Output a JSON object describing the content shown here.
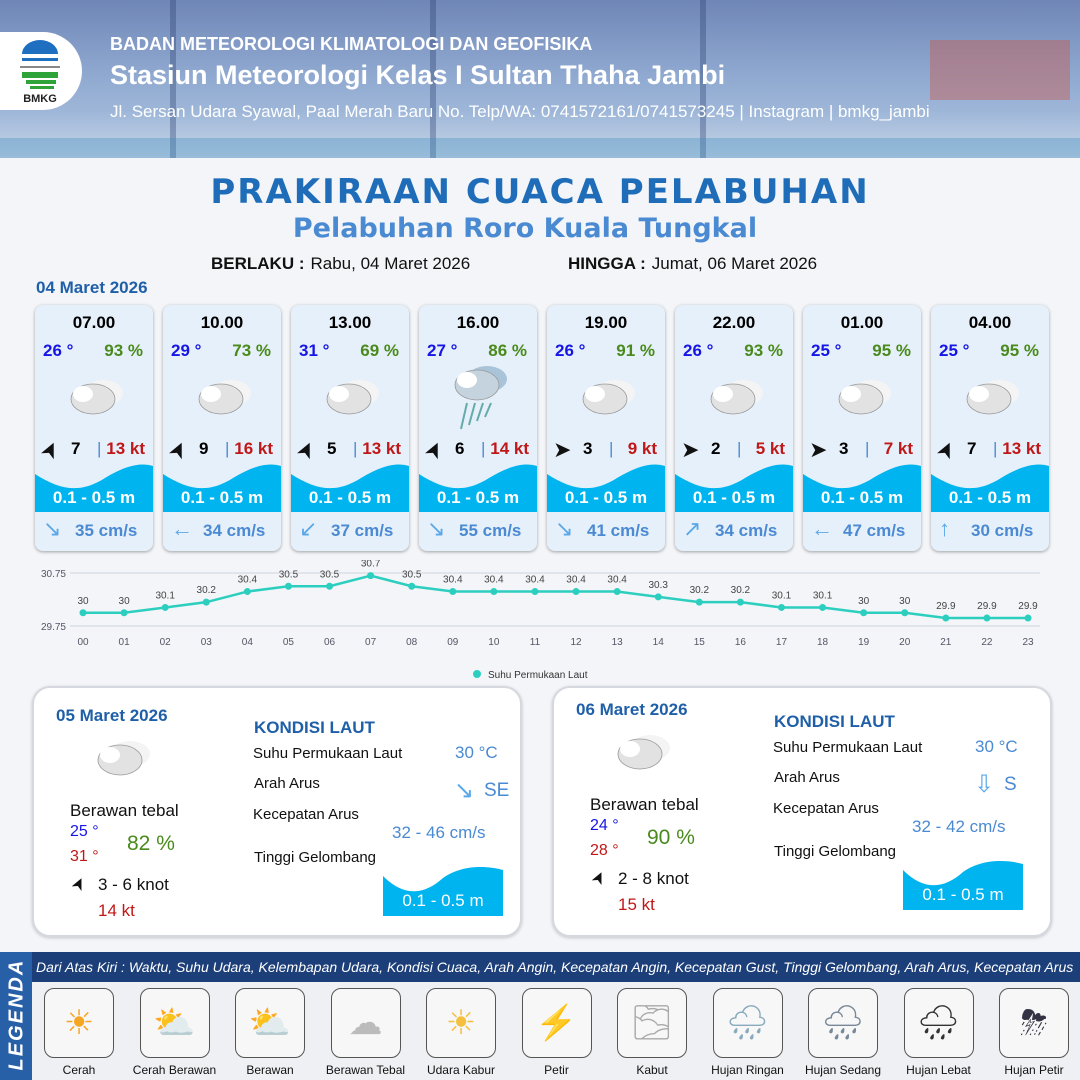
{
  "header": {
    "agency": "BADAN METEOROLOGI KLIMATOLOGI DAN GEOFISIKA",
    "station": "Stasiun Meteorologi Kelas I Sultan Thaha Jambi",
    "address": "Jl. Sersan Udara Syawal, Paal Merah Baru No. Telp/WA: 0741572161/0741573245 | Instagram | bmkg_jambi",
    "logo_text": "BMKG"
  },
  "title": "PRAKIRAAN CUACA PELABUHAN",
  "subtitle": "Pelabuhan Roro Kuala Tungkal",
  "validity": {
    "from_label": "BERLAKU :",
    "from": "Rabu, 04 Maret 2026",
    "to_label": "HINGGA :",
    "to": "Jumat, 06 Maret 2026"
  },
  "day1": {
    "date": "04 Maret 2026",
    "cards": [
      {
        "time": "07.00",
        "temp": "26 °",
        "hum": "93 %",
        "weather": "berawan-tebal",
        "wind_arrow": "north-northeast",
        "wind": "7",
        "gust": "13 kt",
        "wave": "0.1 - 0.5 m",
        "current_arrow": "↘",
        "current_dir": "southeast",
        "current": "35 cm/s"
      },
      {
        "time": "10.00",
        "temp": "29 °",
        "hum": "73 %",
        "weather": "berawan-tebal",
        "wind_arrow": "north-northeast",
        "wind": "9",
        "gust": "16 kt",
        "wave": "0.1 - 0.5 m",
        "current_arrow": "←",
        "current_dir": "west",
        "current": "34 cm/s"
      },
      {
        "time": "13.00",
        "temp": "31 °",
        "hum": "69 %",
        "weather": "berawan-tebal",
        "wind_arrow": "north-northeast",
        "wind": "5",
        "gust": "13 kt",
        "wave": "0.1 - 0.5 m",
        "current_arrow": "↙",
        "current_dir": "southwest",
        "current": "37 cm/s"
      },
      {
        "time": "16.00",
        "temp": "27 °",
        "hum": "86 %",
        "weather": "hujan-ringan",
        "wind_arrow": "north-northeast",
        "wind": "6",
        "gust": "14 kt",
        "wave": "0.1 - 0.5 m",
        "current_arrow": "↘",
        "current_dir": "southeast",
        "current": "55 cm/s"
      },
      {
        "time": "19.00",
        "temp": "26 °",
        "hum": "91 %",
        "weather": "berawan-tebal",
        "wind_arrow": "east",
        "wind": "3",
        "gust": "9 kt",
        "wave": "0.1 - 0.5 m",
        "current_arrow": "↘",
        "current_dir": "southeast",
        "current": "41 cm/s"
      },
      {
        "time": "22.00",
        "temp": "26 °",
        "hum": "93 %",
        "weather": "berawan-tebal",
        "wind_arrow": "east",
        "wind": "2",
        "gust": "5 kt",
        "wave": "0.1 - 0.5 m",
        "current_arrow": "↗",
        "current_dir": "northeast",
        "current": "34 cm/s"
      },
      {
        "time": "01.00",
        "temp": "25 °",
        "hum": "95 %",
        "weather": "berawan-tebal",
        "wind_arrow": "east",
        "wind": "3",
        "gust": "7 kt",
        "wave": "0.1 - 0.5 m",
        "current_arrow": "←",
        "current_dir": "west",
        "current": "47 cm/s"
      },
      {
        "time": "04.00",
        "temp": "25 °",
        "hum": "95 %",
        "weather": "berawan-tebal",
        "wind_arrow": "north-northeast",
        "wind": "7",
        "gust": "13 kt",
        "wave": "0.1 - 0.5 m",
        "current_arrow": "↑",
        "current_dir": "north",
        "current": "30 cm/s"
      }
    ]
  },
  "chart_data": {
    "type": "line",
    "x": [
      "00",
      "01",
      "02",
      "03",
      "04",
      "05",
      "06",
      "07",
      "08",
      "09",
      "10",
      "11",
      "12",
      "13",
      "14",
      "15",
      "16",
      "17",
      "18",
      "19",
      "20",
      "21",
      "22",
      "23"
    ],
    "series": [
      {
        "name": "Suhu Permukaan Laut",
        "values": [
          30.0,
          30.0,
          30.1,
          30.2,
          30.4,
          30.5,
          30.5,
          30.7,
          30.5,
          30.4,
          30.4,
          30.4,
          30.4,
          30.4,
          30.3,
          30.2,
          30.2,
          30.1,
          30.1,
          30.0,
          30.0,
          29.9,
          29.9,
          29.9
        ]
      }
    ],
    "yticks": [
      "30.75",
      "29.75"
    ],
    "ylim": [
      29.75,
      30.75
    ],
    "color": "#2ccfbf",
    "legend": "bottom",
    "grid": true
  },
  "days": [
    {
      "date": "05 Maret 2026",
      "weather": "Berawan tebal",
      "tmin": "25 °",
      "tmax": "31 °",
      "hum": "82 %",
      "wind": "3  - 6 knot",
      "gust": "14 kt",
      "kondisi": "KONDISI LAUT",
      "sst_label": "Suhu Permukaan Laut",
      "sst": "30 °C",
      "dir_label": "Arah Arus",
      "dir": "SE",
      "dir_arrow": "↘",
      "speed_label": "Kecepatan Arus",
      "speed": "32  - 46 cm/s",
      "wave_label": "Tinggi Gelombang",
      "wave": "0.1 - 0.5 m"
    },
    {
      "date": "06 Maret 2026",
      "weather": "Berawan tebal",
      "tmin": "24 °",
      "tmax": "28 °",
      "hum": "90 %",
      "wind": "2  - 8 knot",
      "gust": "15 kt",
      "kondisi": "KONDISI LAUT",
      "sst_label": "Suhu Permukaan Laut",
      "sst": "30 °C",
      "dir_label": "Arah Arus",
      "dir": "S",
      "dir_arrow": "⇩",
      "speed_label": "Kecepatan Arus",
      "speed": "32  - 42 cm/s",
      "wave_label": "Tinggi Gelombang",
      "wave": "0.1 - 0.5 m"
    }
  ],
  "legend": {
    "title": "LEGENDA",
    "description": "Dari Atas Kiri : Waktu, Suhu Udara, Kelembapan Udara, Kondisi Cuaca, Arah Angin, Kecepatan Angin, Kecepatan Gust, Tinggi Gelombang, Arah Arus, Kecepatan Arus",
    "items": [
      {
        "label": "Cerah",
        "icon": "☀"
      },
      {
        "label": "Cerah Berawan",
        "icon": "⛅"
      },
      {
        "label": "Berawan",
        "icon": "⛅"
      },
      {
        "label": "Berawan Tebal",
        "icon": "☁"
      },
      {
        "label": "Udara Kabur",
        "icon": "☀"
      },
      {
        "label": "Petir",
        "icon": "⚡"
      },
      {
        "label": "Kabut",
        "icon": "🌫"
      },
      {
        "label": "Hujan Ringan",
        "icon": "🌧"
      },
      {
        "label": "Hujan Sedang",
        "icon": "🌧"
      },
      {
        "label": "Hujan Lebat",
        "icon": "🌧"
      },
      {
        "label": "Hujan Petir",
        "icon": "⛈"
      }
    ]
  },
  "colors": {
    "title": "#1f6db8",
    "wave": "#00b4f0",
    "temp": "#1515e6",
    "humidity": "#4a8a1c",
    "gust": "#c01818",
    "chart_line": "#2ccfbf",
    "legend_bar": "#1c3f7a"
  }
}
